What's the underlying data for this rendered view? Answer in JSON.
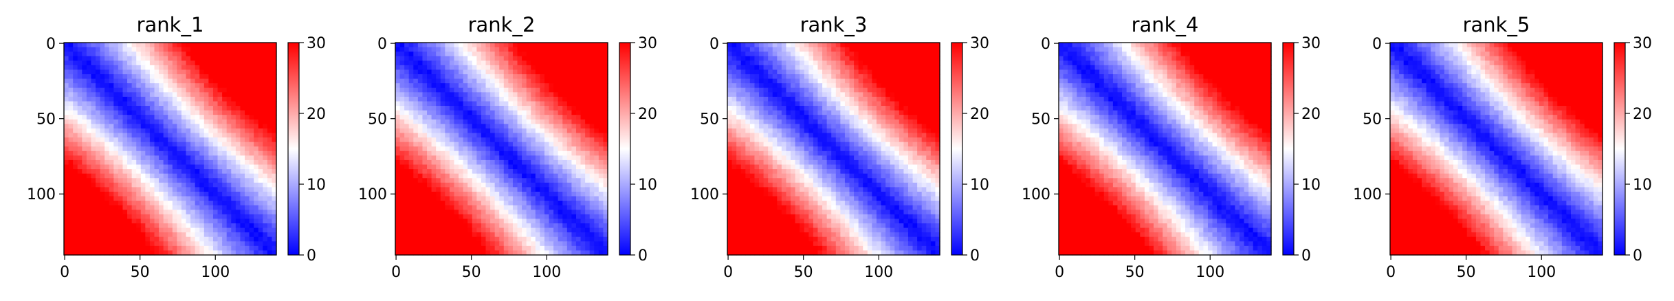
{
  "chart_data": [
    {
      "type": "heatmap",
      "title": "rank_1",
      "matrix_size": 141,
      "x_ticks": [
        0,
        50,
        100
      ],
      "y_ticks": [
        0,
        50,
        100
      ],
      "colorbar": {
        "min": 0,
        "max": 30,
        "ticks": [
          0,
          10,
          20,
          30
        ]
      },
      "colormap": [
        "#0000ff",
        "#ffffff",
        "#ff0000"
      ]
    },
    {
      "type": "heatmap",
      "title": "rank_2",
      "matrix_size": 141,
      "x_ticks": [
        0,
        50,
        100
      ],
      "y_ticks": [
        0,
        50,
        100
      ],
      "colorbar": {
        "min": 0,
        "max": 30,
        "ticks": [
          0,
          10,
          20,
          30
        ]
      },
      "colormap": [
        "#0000ff",
        "#ffffff",
        "#ff0000"
      ]
    },
    {
      "type": "heatmap",
      "title": "rank_3",
      "matrix_size": 141,
      "x_ticks": [
        0,
        50,
        100
      ],
      "y_ticks": [
        0,
        50,
        100
      ],
      "colorbar": {
        "min": 0,
        "max": 30,
        "ticks": [
          0,
          10,
          20,
          30
        ]
      },
      "colormap": [
        "#0000ff",
        "#ffffff",
        "#ff0000"
      ]
    },
    {
      "type": "heatmap",
      "title": "rank_4",
      "matrix_size": 141,
      "x_ticks": [
        0,
        50,
        100
      ],
      "y_ticks": [
        0,
        50,
        100
      ],
      "colorbar": {
        "min": 0,
        "max": 30,
        "ticks": [
          0,
          10,
          20,
          30
        ]
      },
      "colormap": [
        "#0000ff",
        "#ffffff",
        "#ff0000"
      ]
    },
    {
      "type": "heatmap",
      "title": "rank_5",
      "matrix_size": 141,
      "x_ticks": [
        0,
        50,
        100
      ],
      "y_ticks": [
        0,
        50,
        100
      ],
      "colorbar": {
        "min": 0,
        "max": 30,
        "ticks": [
          0,
          10,
          20,
          30
        ]
      },
      "colormap": [
        "#0000ff",
        "#ffffff",
        "#ff0000"
      ]
    }
  ]
}
